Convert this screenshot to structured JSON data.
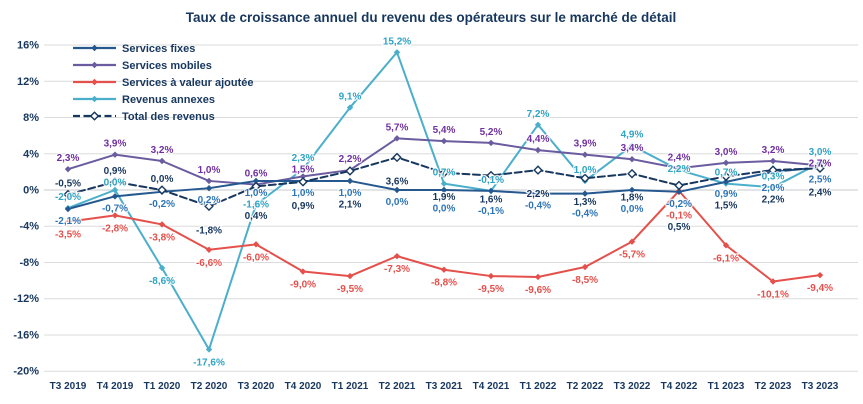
{
  "chart_data": {
    "type": "line",
    "title": "Taux de croissance annuel du revenu des opérateurs sur le marché de détail",
    "categories": [
      "T3 2019",
      "T4 2019",
      "T1 2020",
      "T2 2020",
      "T3 2020",
      "T4 2020",
      "T1 2021",
      "T2 2021",
      "T3 2021",
      "T4 2021",
      "T1 2022",
      "T2 2022",
      "T3 2022",
      "T4 2022",
      "T1 2023",
      "T2 2023",
      "T3 2023"
    ],
    "unit": "%",
    "decimal_separator": ",",
    "ylim": [
      -20,
      16
    ],
    "ytick_step": 4,
    "yticks": [
      "16%",
      "12%",
      "8%",
      "4%",
      "0%",
      "-4%",
      "-8%",
      "-12%",
      "-16%",
      "-20%"
    ],
    "grid": true,
    "legend_position": "top-left",
    "series": [
      {
        "name": "Services fixes",
        "color": "#24588F",
        "label_color": "#2E75B6",
        "marker": "diamond",
        "values": [
          -2.1,
          -0.7,
          -0.2,
          0.2,
          1.0,
          1.0,
          1.0,
          0.0,
          0.0,
          -0.1,
          -0.4,
          -0.4,
          0.0,
          -0.2,
          0.9,
          2.0,
          2.5
        ]
      },
      {
        "name": "Services mobiles",
        "color": "#6A5C9E",
        "label_color": "#7030A0",
        "marker": "diamond",
        "values": [
          2.3,
          3.9,
          3.2,
          1.0,
          0.6,
          1.5,
          2.2,
          5.7,
          5.4,
          5.2,
          4.4,
          3.9,
          3.4,
          2.4,
          3.0,
          3.2,
          2.7
        ]
      },
      {
        "name": "Services à valeur ajoutée",
        "color": "#E4504B",
        "label_color": "#E4504B",
        "marker": "diamond",
        "values": [
          -3.5,
          -2.8,
          -3.8,
          -6.6,
          -6.0,
          -9.0,
          -9.5,
          -7.3,
          -8.8,
          -9.5,
          -9.6,
          -8.5,
          -5.7,
          -0.1,
          -6.1,
          -10.1,
          -9.4
        ]
      },
      {
        "name": "Revenus annexes",
        "color": "#4BAFCB",
        "label_color": "#31A3C4",
        "marker": "diamond",
        "values": [
          -2.0,
          0.0,
          -8.6,
          -17.6,
          -1.6,
          2.3,
          9.1,
          15.2,
          0.7,
          -0.1,
          7.2,
          1.0,
          4.9,
          2.2,
          0.7,
          0.3,
          3.0
        ]
      },
      {
        "name": "Total des revenus",
        "color": "#17375E",
        "label_color": "#17375E",
        "marker": "open-diamond",
        "dash": "7 3.5",
        "open_marker": true,
        "values": [
          -0.5,
          0.9,
          0.0,
          -1.8,
          0.4,
          0.9,
          2.1,
          3.6,
          1.9,
          1.6,
          2.2,
          1.3,
          1.8,
          0.5,
          1.5,
          2.2,
          2.4
        ]
      }
    ]
  }
}
